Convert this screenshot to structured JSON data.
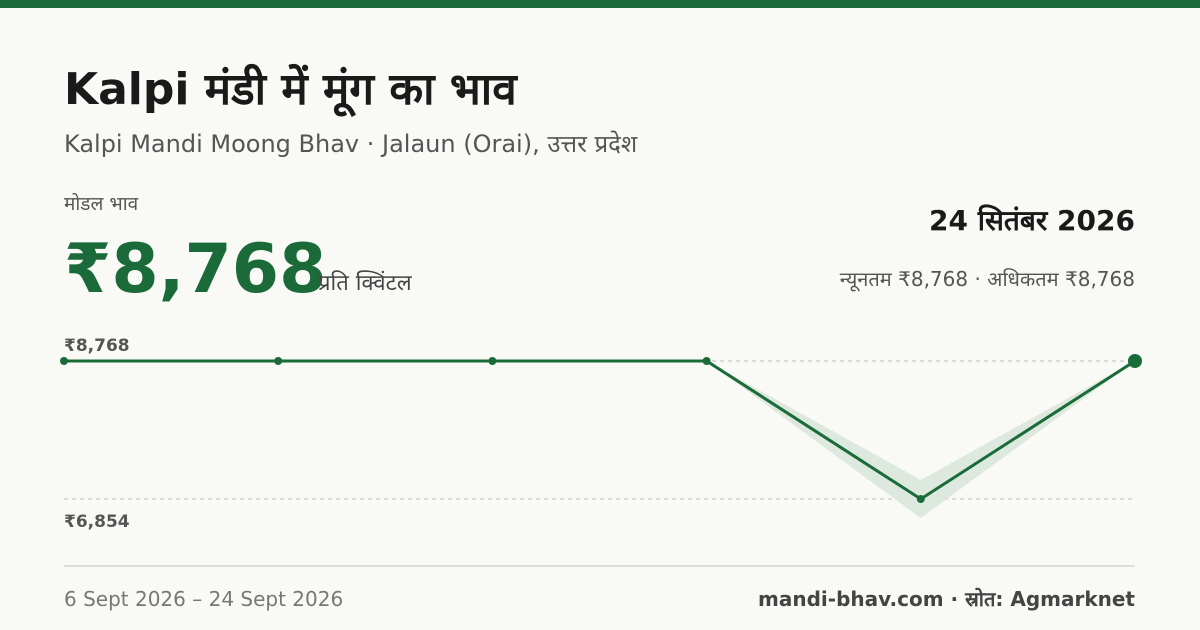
{
  "header": {
    "title": "Kalpi मंडी में मूंग का भाव",
    "subtitle": "Kalpi Mandi Moong Bhav · Jalaun (Orai), उत्तर प्रदेश",
    "price_label": "मोडल भाव",
    "price": "₹8,768",
    "unit": "प्रति क्विंटल",
    "date": "24 सितंबर 2026",
    "range_text": "न्यूनतम ₹8,768 · अधिकतम ₹8,768"
  },
  "chart_data": {
    "type": "line",
    "categories": [
      null,
      null,
      null,
      null,
      null,
      null
    ],
    "values": [
      8768,
      8768,
      8768,
      8768,
      6854,
      8768
    ],
    "color": "#1b6b3a",
    "range": {
      "low": [
        8768,
        8768,
        8768,
        8768,
        6590,
        8768
      ],
      "high": [
        8768,
        8768,
        8768,
        8768,
        7118,
        8768
      ],
      "color": "#dde8de"
    },
    "ylim": [
      6424,
      9198
    ],
    "yticks": [
      {
        "value": 8768,
        "label": "₹8,768"
      },
      {
        "value": 6854,
        "label": "₹6,854"
      }
    ],
    "grid": true
  },
  "footer": {
    "dates": "6 Sept 2026 – 24 Sept 2026",
    "source": "mandi-bhav.com · स्रोत: Agmarknet"
  }
}
